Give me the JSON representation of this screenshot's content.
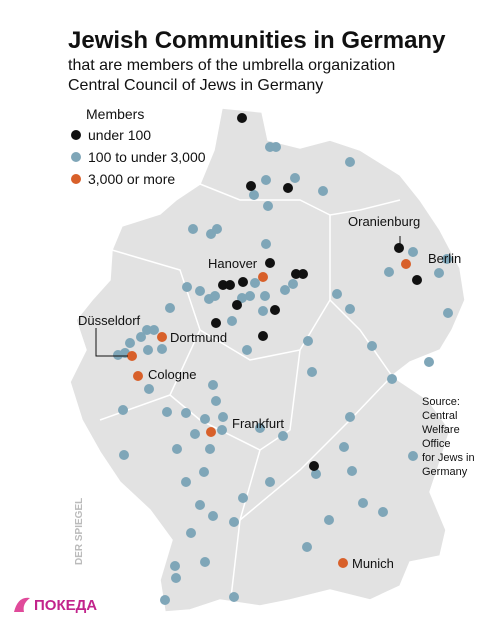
{
  "header": {
    "title": "Jewish Communities in Germany",
    "subtitle": [
      "that are members of the umbrella organization",
      "Central Council of Jews in Germany"
    ]
  },
  "legend": {
    "title": "Members",
    "items": [
      "under 100",
      "100 to under 3,000",
      "3,000 or more"
    ]
  },
  "cities": {
    "hanover": "Hanover",
    "oranienburg": "Oranienburg",
    "berlin": "Berlin",
    "dusseldorf": "Düsseldorf",
    "dortmund": "Dortmund",
    "cologne": "Cologne",
    "frankfurt": "Frankfurt",
    "munich": "Munich"
  },
  "source": [
    "Source:",
    "Central",
    "Welfare",
    "Office",
    "for Jews in",
    "Germany"
  ],
  "watermark": "DER SPIEGEL",
  "logo": "ПОКЕДА"
}
